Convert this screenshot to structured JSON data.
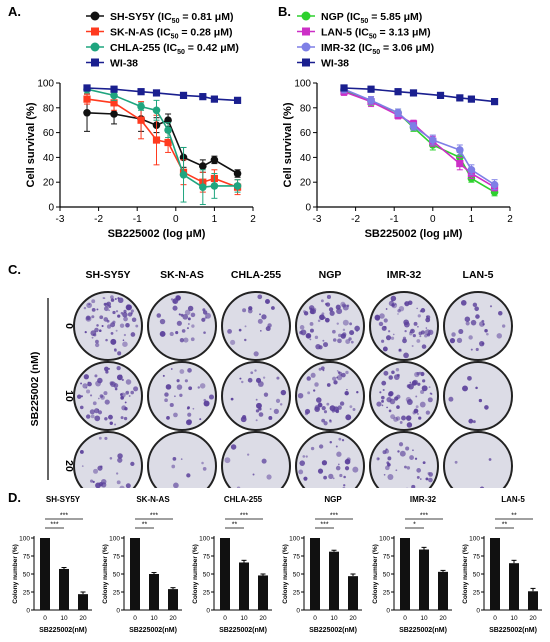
{
  "panel_letters": {
    "a": "A.",
    "b": "B.",
    "c": "C.",
    "d": "D."
  },
  "colors": {
    "SH-SY5Y": "#111111",
    "SK-N-AS": "#ff3a1f",
    "CHLA-255": "#1fa57f",
    "WI-38": "#1a1f8f",
    "NGP": "#2ed12e",
    "LAN-5": "#cc2fc6",
    "IMR-32": "#7e7fe6",
    "bar": "#111111",
    "plate_bg": "#dcdce6",
    "colony": "#5a3f9a"
  },
  "icons": {
    "legend_marker": "circle / square marker with line",
    "plate": "petri dish"
  },
  "chart_data": [
    {
      "id": "A",
      "type": "line",
      "xlabel": "SB225002 (log μM)",
      "ylabel": "Cell survival (%)",
      "xlim": [
        -3,
        2
      ],
      "ylim": [
        0,
        100
      ],
      "xticks": [
        "-3",
        "-2",
        "-1",
        "0",
        "1",
        "2"
      ],
      "yticks": [
        "0",
        "20",
        "40",
        "60",
        "80",
        "100"
      ],
      "legend_position": "top",
      "series": [
        {
          "name": "SH-SY5Y",
          "legend": "SH-SY5Y (IC50 = 0.81 μM)",
          "marker": "circle",
          "x": [
            -2.3,
            -1.6,
            -0.9,
            -0.5,
            -0.2,
            0.2,
            0.7,
            1.0,
            1.6
          ],
          "y": [
            76,
            75,
            71,
            66,
            70,
            40,
            33,
            38,
            27
          ],
          "err": [
            15,
            8,
            10,
            6,
            5,
            8,
            5,
            3,
            3
          ]
        },
        {
          "name": "SK-N-AS",
          "legend": "SK-N-AS (IC50 = 0.28 μM)",
          "marker": "square",
          "x": [
            -2.3,
            -1.6,
            -0.9,
            -0.5,
            -0.2,
            0.2,
            0.7,
            1.0,
            1.6
          ],
          "y": [
            87,
            84,
            70,
            54,
            52,
            28,
            20,
            23,
            16
          ],
          "err": [
            4,
            6,
            15,
            20,
            8,
            10,
            8,
            7,
            6
          ]
        },
        {
          "name": "CHLA-255",
          "legend": "CHLA-255 (IC50 = 0.42 μM)",
          "marker": "circle",
          "x": [
            -2.3,
            -1.6,
            -0.9,
            -0.5,
            -0.2,
            0.2,
            0.7,
            1.0,
            1.6
          ],
          "y": [
            95,
            90,
            81,
            78,
            62,
            26,
            16,
            17,
            17
          ],
          "err": [
            3,
            4,
            3,
            8,
            6,
            22,
            14,
            10,
            5
          ]
        },
        {
          "name": "WI-38",
          "legend": "WI-38",
          "marker": "square",
          "x": [
            -2.3,
            -1.6,
            -0.9,
            -0.5,
            0.2,
            0.7,
            1.0,
            1.6
          ],
          "y": [
            96,
            95,
            93,
            92,
            90,
            89,
            87,
            86
          ],
          "err": [
            0,
            0,
            0,
            0,
            0,
            0,
            0,
            0
          ]
        }
      ]
    },
    {
      "id": "B",
      "type": "line",
      "xlabel": "SB225002 (log μM)",
      "ylabel": "Cell survival (%)",
      "xlim": [
        -3,
        2
      ],
      "ylim": [
        0,
        100
      ],
      "xticks": [
        "-3",
        "-2",
        "-1",
        "0",
        "1",
        "2"
      ],
      "yticks": [
        "0",
        "20",
        "40",
        "60",
        "80",
        "100"
      ],
      "legend_position": "top",
      "series": [
        {
          "name": "NGP",
          "legend": "NGP (IC50 = 5.85 μM)",
          "marker": "circle",
          "x": [
            -2.3,
            -1.6,
            -0.9,
            -0.5,
            0.0,
            0.7,
            1.0,
            1.6
          ],
          "y": [
            94,
            85,
            76,
            64,
            50,
            40,
            23,
            12
          ],
          "err": [
            3,
            3,
            3,
            3,
            4,
            4,
            3,
            3
          ]
        },
        {
          "name": "LAN-5",
          "legend": "LAN-5 (IC50 = 3.13 μM)",
          "marker": "square",
          "x": [
            -2.3,
            -1.6,
            -0.9,
            -0.5,
            0.0,
            0.7,
            1.0,
            1.6
          ],
          "y": [
            93,
            85,
            74,
            67,
            53,
            35,
            27,
            16
          ],
          "err": [
            3,
            4,
            3,
            3,
            4,
            5,
            4,
            3
          ]
        },
        {
          "name": "IMR-32",
          "legend": "IMR-32 (IC50 = 3.06 μM)",
          "marker": "circle",
          "x": [
            -2.3,
            -1.6,
            -0.9,
            -0.5,
            0.0,
            0.7,
            1.0,
            1.6
          ],
          "y": [
            95,
            86,
            76,
            65,
            54,
            46,
            30,
            18
          ],
          "err": [
            3,
            3,
            3,
            3,
            4,
            4,
            4,
            4
          ]
        },
        {
          "name": "WI-38",
          "legend": "WI-38",
          "marker": "square",
          "x": [
            -2.3,
            -1.6,
            -0.9,
            -0.5,
            0.2,
            0.7,
            1.0,
            1.6
          ],
          "y": [
            96,
            95,
            93,
            92,
            90,
            88,
            87,
            85
          ],
          "err": [
            0,
            0,
            0,
            0,
            0,
            0,
            0,
            0
          ]
        }
      ]
    },
    {
      "id": "D",
      "type": "bar",
      "xlabel": "SB225002(nM)",
      "ylabel": "Colony number (%)",
      "categories": [
        "0",
        "10",
        "20"
      ],
      "ylim": [
        0,
        100
      ],
      "yticks": [
        "0",
        "25",
        "50",
        "75",
        "100"
      ],
      "panels": [
        {
          "title": "SH-SY5Y",
          "values": [
            100,
            57,
            22
          ],
          "err": [
            0,
            2,
            3
          ],
          "sig": [
            "***",
            "***"
          ]
        },
        {
          "title": "SK-N-AS",
          "values": [
            100,
            50,
            29
          ],
          "err": [
            0,
            2,
            2
          ],
          "sig": [
            "**",
            "***"
          ]
        },
        {
          "title": "CHLA-255",
          "values": [
            100,
            66,
            48
          ],
          "err": [
            0,
            3,
            2
          ],
          "sig": [
            "**",
            "***"
          ]
        },
        {
          "title": "NGP",
          "values": [
            100,
            81,
            47
          ],
          "err": [
            0,
            2,
            3
          ],
          "sig": [
            "***",
            "***"
          ]
        },
        {
          "title": "IMR-32",
          "values": [
            100,
            84,
            53
          ],
          "err": [
            0,
            3,
            2
          ],
          "sig": [
            "*",
            "***"
          ]
        },
        {
          "title": "LAN-5",
          "values": [
            100,
            65,
            26
          ],
          "err": [
            0,
            4,
            4
          ],
          "sig": [
            "**",
            "**"
          ]
        }
      ]
    }
  ],
  "plates": {
    "columns": [
      "SH-SY5Y",
      "SK-N-AS",
      "CHLA-255",
      "NGP",
      "IMR-32",
      "LAN-5"
    ],
    "rows": [
      "0",
      "10",
      "20"
    ],
    "row_axis_label": "SB225002 (nM)",
    "density": [
      [
        0.95,
        0.45,
        0.25,
        0.75,
        0.85,
        0.35
      ],
      [
        0.8,
        0.4,
        0.35,
        0.65,
        0.8,
        0.12
      ],
      [
        0.3,
        0.1,
        0.1,
        0.4,
        0.45,
        0.04
      ]
    ]
  }
}
